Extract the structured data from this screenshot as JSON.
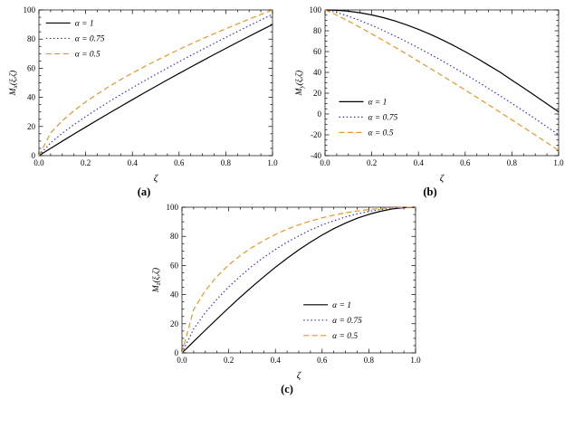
{
  "page": {
    "background": "#ffffff"
  },
  "chart_data": [
    {
      "id": "chart-a",
      "type": "line",
      "caption": "(a)",
      "xlabel": "ζ",
      "ylabel": {
        "base": "M",
        "sub": "x",
        "rest": "(ξ,ζ)"
      },
      "xlim": [
        0,
        1
      ],
      "ylim": [
        0,
        100
      ],
      "xticks": [
        0,
        0.2,
        0.4,
        0.6,
        0.8,
        1.0
      ],
      "xtick_labels": [
        "0.0",
        "0.2",
        "0.4",
        "0.6",
        "0.8",
        "1.0"
      ],
      "yticks": [
        0,
        20,
        40,
        60,
        80,
        100
      ],
      "ytick_labels": [
        "0",
        "20",
        "40",
        "60",
        "80",
        "100"
      ],
      "xminor": 0.05,
      "yminor": 5,
      "grid": false,
      "legend": {
        "fx": 0.03,
        "fy": 0.04
      },
      "x": [
        0,
        0.05,
        0.1,
        0.15,
        0.2,
        0.25,
        0.3,
        0.35,
        0.4,
        0.45,
        0.5,
        0.55,
        0.6,
        0.65,
        0.7,
        0.75,
        0.8,
        0.85,
        0.9,
        0.95,
        1.0
      ],
      "series": [
        {
          "label": "α = 1",
          "color": "#000000",
          "dash": "solid",
          "y": [
            0,
            5.0,
            9.9,
            14.8,
            19.6,
            24.4,
            29.1,
            33.8,
            38.4,
            43.0,
            47.5,
            52.0,
            56.4,
            60.8,
            65.1,
            69.4,
            73.6,
            77.8,
            81.9,
            86.0,
            90.0
          ]
        },
        {
          "label": "α = 0.75",
          "color": "#3333cc",
          "dash": "dotted",
          "y": [
            0,
            8.8,
            15.4,
            21.3,
            26.8,
            32.0,
            37.0,
            41.9,
            46.6,
            51.2,
            55.7,
            60.1,
            64.5,
            68.7,
            72.9,
            77.1,
            81.1,
            85.2,
            89.2,
            93.1,
            97.0
          ]
        },
        {
          "label": "α = 0.5",
          "color": "#e79724",
          "dash": "dashed",
          "y": [
            0,
            15.6,
            24.0,
            30.9,
            36.9,
            42.3,
            47.4,
            52.2,
            56.7,
            61.0,
            65.1,
            69.0,
            72.9,
            76.6,
            80.2,
            83.7,
            87.1,
            90.4,
            93.7,
            96.9,
            100.0
          ]
        }
      ]
    },
    {
      "id": "chart-b",
      "type": "line",
      "caption": "(b)",
      "xlabel": "ζ",
      "ylabel": {
        "base": "M",
        "sub": "y",
        "rest": "(ξ,ζ)"
      },
      "xlim": [
        0,
        1
      ],
      "ylim": [
        -40,
        100
      ],
      "xticks": [
        0,
        0.2,
        0.4,
        0.6,
        0.8,
        1.0
      ],
      "xtick_labels": [
        "0.0",
        "0.2",
        "0.4",
        "0.6",
        "0.8",
        "1.0"
      ],
      "yticks": [
        -40,
        -20,
        0,
        20,
        40,
        60,
        80,
        100
      ],
      "ytick_labels": [
        "-40",
        "-20",
        "0",
        "20",
        "40",
        "60",
        "80",
        "100"
      ],
      "xminor": 0.05,
      "yminor": 5,
      "grid": false,
      "legend": {
        "fx": 0.06,
        "fy": 0.58
      },
      "x": [
        0,
        0.05,
        0.1,
        0.15,
        0.2,
        0.25,
        0.3,
        0.35,
        0.4,
        0.45,
        0.5,
        0.55,
        0.6,
        0.65,
        0.7,
        0.75,
        0.8,
        0.85,
        0.9,
        0.95,
        1.0
      ],
      "series": [
        {
          "label": "α = 1",
          "color": "#000000",
          "dash": "solid",
          "y": [
            100,
            99.7,
            98.8,
            97.3,
            95.2,
            92.6,
            89.4,
            85.6,
            81.4,
            76.7,
            71.5,
            65.9,
            59.9,
            53.6,
            46.9,
            40.1,
            32.5,
            25.1,
            17.5,
            9.8,
            2.1
          ]
        },
        {
          "label": "α = 0.75",
          "color": "#3333cc",
          "dash": "dotted",
          "y": [
            100,
            97.6,
            94.0,
            89.8,
            85.2,
            80.2,
            74.9,
            69.4,
            63.5,
            57.5,
            51.3,
            44.8,
            38.2,
            31.5,
            24.5,
            17.4,
            10.2,
            2.9,
            -4.6,
            -12.3,
            -20.0
          ]
        },
        {
          "label": "α = 0.5",
          "color": "#e79724",
          "dash": "dashed",
          "y": [
            100,
            95.0,
            89.3,
            83.2,
            77.0,
            70.6,
            64.1,
            57.5,
            50.7,
            43.9,
            37.0,
            30.1,
            23.0,
            16.0,
            8.8,
            1.6,
            -5.6,
            -12.9,
            -20.2,
            -27.6,
            -35.0
          ]
        }
      ]
    },
    {
      "id": "chart-c",
      "type": "line",
      "caption": "(c)",
      "xlabel": "ζ",
      "ylabel": {
        "base": "M",
        "sub": "z",
        "rest": "(ξ,ζ)"
      },
      "xlim": [
        0,
        1
      ],
      "ylim": [
        0,
        100
      ],
      "xticks": [
        0,
        0.2,
        0.4,
        0.6,
        0.8,
        1.0
      ],
      "xtick_labels": [
        "0.0",
        "0.2",
        "0.4",
        "0.6",
        "0.8",
        "1.0"
      ],
      "yticks": [
        0,
        20,
        40,
        60,
        80,
        100
      ],
      "ytick_labels": [
        "0",
        "20",
        "40",
        "60",
        "80",
        "100"
      ],
      "xminor": 0.05,
      "yminor": 5,
      "grid": false,
      "legend": {
        "fx": 0.52,
        "fy": 0.62
      },
      "x": [
        0,
        0.05,
        0.1,
        0.15,
        0.2,
        0.25,
        0.3,
        0.35,
        0.4,
        0.45,
        0.5,
        0.55,
        0.6,
        0.65,
        0.7,
        0.75,
        0.8,
        0.85,
        0.9,
        0.95,
        1.0
      ],
      "series": [
        {
          "label": "α = 1",
          "color": "#000000",
          "dash": "solid",
          "y": [
            0,
            7.8,
            15.6,
            23.3,
            30.9,
            38.3,
            45.4,
            52.2,
            58.8,
            64.9,
            70.7,
            76.0,
            80.9,
            85.3,
            89.1,
            92.4,
            95.1,
            97.2,
            98.8,
            99.7,
            100.0
          ]
        },
        {
          "label": "α = 0.75",
          "color": "#3333cc",
          "dash": "dotted",
          "y": [
            0,
            16.5,
            27.6,
            37.0,
            45.3,
            52.7,
            59.5,
            65.6,
            71.0,
            76.0,
            80.3,
            84.4,
            87.8,
            90.7,
            93.3,
            95.4,
            97.1,
            98.4,
            99.3,
            99.8,
            100.0
          ]
        },
        {
          "label": "α = 0.5",
          "color": "#e79724",
          "dash": "dashed",
          "y": [
            0,
            29.8,
            42.8,
            52.6,
            60.4,
            66.9,
            72.4,
            77.2,
            81.3,
            84.9,
            87.9,
            90.5,
            92.7,
            94.6,
            96.1,
            97.4,
            98.4,
            99.1,
            99.6,
            99.9,
            100.0
          ]
        }
      ]
    }
  ]
}
